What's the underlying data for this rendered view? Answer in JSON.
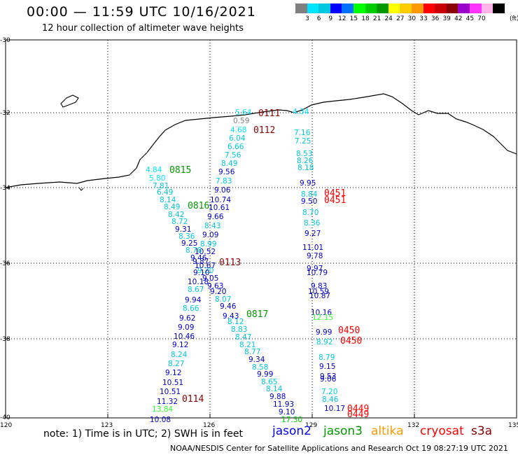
{
  "header": {
    "title": "00:00 — 11:59 UTC 10/16/2021",
    "subtitle": "12 hour collection of altimeter wave heights"
  },
  "colorbar": {
    "colors": [
      "#7f7f7f",
      "#00e5ff",
      "#00c8e0",
      "#0000ff",
      "#0070ff",
      "#00ff00",
      "#00cc00",
      "#009900",
      "#ffff00",
      "#ffcc00",
      "#ff9900",
      "#ff0000",
      "#c80000",
      "#8b0000",
      "#9900cc",
      "#ff33ff",
      "#ffb3e6",
      "#000000"
    ],
    "labels": [
      "3",
      "6",
      "9",
      "12",
      "15",
      "18",
      "21",
      "24",
      "27",
      "30",
      "33",
      "36",
      "39",
      "42",
      "45",
      "70"
    ],
    "unit": "(ft)"
  },
  "axes": {
    "lat_labels": [
      "-30",
      "-32",
      "-34",
      "-36",
      "-38",
      "-40"
    ],
    "lon_labels": [
      "120",
      "123",
      "126",
      "129",
      "132",
      "135"
    ]
  },
  "observations": [
    {
      "t": "5.64",
      "c": "#00e5ff"
    },
    {
      "t": "0.59",
      "c": "#7f7f7f"
    },
    {
      "t": "4.68",
      "c": "#00e5ff"
    },
    {
      "t": "6.04",
      "c": "#00c8e0"
    },
    {
      "t": "6.66",
      "c": "#00c8e0"
    },
    {
      "t": "7.56",
      "c": "#00c8e0"
    },
    {
      "t": "8.49",
      "c": "#00c8e0"
    },
    {
      "t": "9.56",
      "c": "#0000cc"
    },
    {
      "t": "7.83",
      "c": "#00c8e0"
    },
    {
      "t": "9.06",
      "c": "#0000cc"
    },
    {
      "t": "10.74",
      "c": "#0000cc"
    },
    {
      "t": "10.61",
      "c": "#0000cc"
    },
    {
      "t": "9.66",
      "c": "#0000cc"
    },
    {
      "t": "8.43",
      "c": "#00c8e0"
    },
    {
      "t": "9.09",
      "c": "#0000cc"
    },
    {
      "t": "8.99",
      "c": "#00c8e0"
    },
    {
      "t": "10.52",
      "c": "#0000cc"
    },
    {
      "t": "9.87",
      "c": "#0000cc"
    },
    {
      "t": "9.20",
      "c": "#00c8e0"
    },
    {
      "t": "9.05",
      "c": "#0000cc"
    },
    {
      "t": "9.63",
      "c": "#0000cc"
    },
    {
      "t": "9.20",
      "c": "#0000cc"
    },
    {
      "t": "8.07",
      "c": "#00c8e0"
    },
    {
      "t": "9.46",
      "c": "#0000cc"
    },
    {
      "t": "9.43",
      "c": "#0000cc"
    },
    {
      "t": "8.12",
      "c": "#00c8e0"
    },
    {
      "t": "8.83",
      "c": "#00c8e0"
    },
    {
      "t": "8.47",
      "c": "#00c8e0"
    },
    {
      "t": "8.21",
      "c": "#00c8e0"
    },
    {
      "t": "8.77",
      "c": "#00c8e0"
    },
    {
      "t": "9.34",
      "c": "#0000cc"
    },
    {
      "t": "8.58",
      "c": "#00c8e0"
    },
    {
      "t": "9.99",
      "c": "#0000cc"
    },
    {
      "t": "8.65",
      "c": "#00c8e0"
    },
    {
      "t": "8.14",
      "c": "#00c8e0"
    },
    {
      "t": "9.88",
      "c": "#0000cc"
    },
    {
      "t": "11.93",
      "c": "#0000cc"
    },
    {
      "t": "9.10",
      "c": "#0000cc"
    },
    {
      "t": "17.30",
      "c": "#00cc00"
    },
    {
      "t": "4.84",
      "c": "#00e5ff"
    },
    {
      "t": "5.80",
      "c": "#00e5ff"
    },
    {
      "t": "7.81",
      "c": "#00c8e0"
    },
    {
      "t": "6.49",
      "c": "#00c8e0"
    },
    {
      "t": "8.14",
      "c": "#00c8e0"
    },
    {
      "t": "8.49",
      "c": "#00c8e0"
    },
    {
      "t": "8.42",
      "c": "#00c8e0"
    },
    {
      "t": "8.72",
      "c": "#00c8e0"
    },
    {
      "t": "9.31",
      "c": "#0000cc"
    },
    {
      "t": "8.36",
      "c": "#00c8e0"
    },
    {
      "t": "9.25",
      "c": "#0000cc"
    },
    {
      "t": "8.78",
      "c": "#00c8e0"
    },
    {
      "t": "9.46",
      "c": "#0000cc"
    },
    {
      "t": "10.67",
      "c": "#0000cc"
    },
    {
      "t": "9.10",
      "c": "#0000cc"
    },
    {
      "t": "10.18",
      "c": "#0000cc"
    },
    {
      "t": "8.67",
      "c": "#00c8e0"
    },
    {
      "t": "9.94",
      "c": "#0000cc"
    },
    {
      "t": "8.66",
      "c": "#00c8e0"
    },
    {
      "t": "9.62",
      "c": "#0000cc"
    },
    {
      "t": "9.09",
      "c": "#0000cc"
    },
    {
      "t": "10.46",
      "c": "#0000cc"
    },
    {
      "t": "9.12",
      "c": "#0000cc"
    },
    {
      "t": "8.24",
      "c": "#00c8e0"
    },
    {
      "t": "8.27",
      "c": "#00c8e0"
    },
    {
      "t": "9.12",
      "c": "#0000cc"
    },
    {
      "t": "10.51",
      "c": "#0000cc"
    },
    {
      "t": "10.51",
      "c": "#0000cc"
    },
    {
      "t": "11.32",
      "c": "#0000cc"
    },
    {
      "t": "13.84",
      "c": "#33ff33"
    },
    {
      "t": "10.08",
      "c": "#0000cc"
    },
    {
      "t": "4.34",
      "c": "#00e5ff"
    },
    {
      "t": "7.16",
      "c": "#00c8e0"
    },
    {
      "t": "7.25",
      "c": "#00c8e0"
    },
    {
      "t": "8.53",
      "c": "#00c8e0"
    },
    {
      "t": "8.26",
      "c": "#00c8e0"
    },
    {
      "t": "8.18",
      "c": "#00c8e0"
    },
    {
      "t": "9.95",
      "c": "#0000cc"
    },
    {
      "t": "8.84",
      "c": "#00c8e0"
    },
    {
      "t": "9.50",
      "c": "#0000cc"
    },
    {
      "t": "8.70",
      "c": "#00c8e0"
    },
    {
      "t": "8.36",
      "c": "#00c8e0"
    },
    {
      "t": "9.27",
      "c": "#0000cc"
    },
    {
      "t": "11.01",
      "c": "#0000cc"
    },
    {
      "t": "9.78",
      "c": "#0000cc"
    },
    {
      "t": "9.97",
      "c": "#0000cc"
    },
    {
      "t": "10.79",
      "c": "#0000cc"
    },
    {
      "t": "9.83",
      "c": "#0000cc"
    },
    {
      "t": "10.59",
      "c": "#0000cc"
    },
    {
      "t": "10.87",
      "c": "#0000cc"
    },
    {
      "t": "10.16",
      "c": "#0000cc"
    },
    {
      "t": "12.15",
      "c": "#33ff33"
    },
    {
      "t": "9.99",
      "c": "#0000cc"
    },
    {
      "t": "8.92",
      "c": "#00c8e0"
    },
    {
      "t": "8.79",
      "c": "#00c8e0"
    },
    {
      "t": "9.15",
      "c": "#0000cc"
    },
    {
      "t": "9.53",
      "c": "#0000cc"
    },
    {
      "t": "9.06",
      "c": "#0000cc"
    },
    {
      "t": "7.20",
      "c": "#00c8e0"
    },
    {
      "t": "8.46",
      "c": "#00c8e0"
    },
    {
      "t": "10.17",
      "c": "#0000cc"
    }
  ],
  "passes": [
    {
      "t": "0111",
      "c": "#8b0000"
    },
    {
      "t": "0112",
      "c": "#8b0000"
    },
    {
      "t": "0113",
      "c": "#8b0000"
    },
    {
      "t": "0114",
      "c": "#8b0000"
    },
    {
      "t": "0815",
      "c": "#009900"
    },
    {
      "t": "0816",
      "c": "#009900"
    },
    {
      "t": "0817",
      "c": "#009900"
    },
    {
      "t": "0451",
      "c": "#ff0000"
    },
    {
      "t": "0451",
      "c": "#ff0000"
    },
    {
      "t": "0450",
      "c": "#ff0000"
    },
    {
      "t": "0450",
      "c": "#ff0000"
    },
    {
      "t": "0449",
      "c": "#ff0000"
    },
    {
      "t": "0449",
      "c": "#ff0000"
    }
  ],
  "note": "note: 1) Time is in UTC; 2) SWH is in feet",
  "satellites": [
    {
      "name": "jason2",
      "color": "#0000ff"
    },
    {
      "name": "jason3",
      "color": "#009900"
    },
    {
      "name": "altika",
      "color": "#ff9900"
    },
    {
      "name": "cryosat",
      "color": "#ff0000"
    },
    {
      "name": "s3a",
      "color": "#8b0000"
    }
  ],
  "footer": "NOAA/NESDIS Center for Satellite Applications and Research    Oct 19 08:27:19 UTC 2021"
}
